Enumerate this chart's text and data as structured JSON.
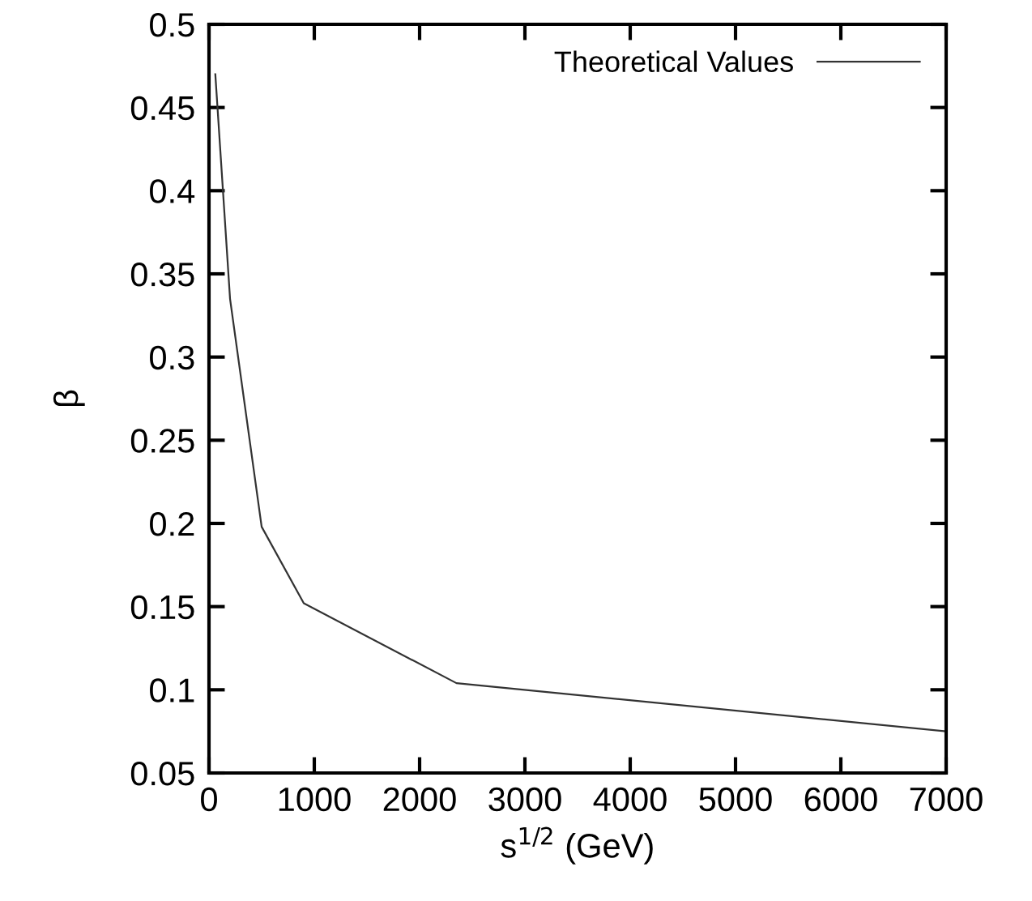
{
  "chart_data": {
    "type": "line",
    "xlabel": "s$^{1/2}$ (GeV)",
    "ylabel": "β",
    "x": [
      60,
      200,
      500,
      900,
      2350,
      7000
    ],
    "series": [
      {
        "name": "Theoretical Values",
        "color": "#333333",
        "values": [
          0.47,
          0.335,
          0.198,
          0.152,
          0.104,
          0.075
        ]
      }
    ],
    "xlim": [
      0,
      7000
    ],
    "xticks": [
      0,
      1000,
      2000,
      3000,
      4000,
      5000,
      6000,
      7000
    ],
    "ylim": [
      0.05,
      0.5
    ],
    "yticks": [
      0.05,
      0.1,
      0.15,
      0.2,
      0.25,
      0.3,
      0.35,
      0.4,
      0.45,
      0.5
    ],
    "grid": false,
    "legend": "top right",
    "marker": "none",
    "line_style": "solid"
  }
}
